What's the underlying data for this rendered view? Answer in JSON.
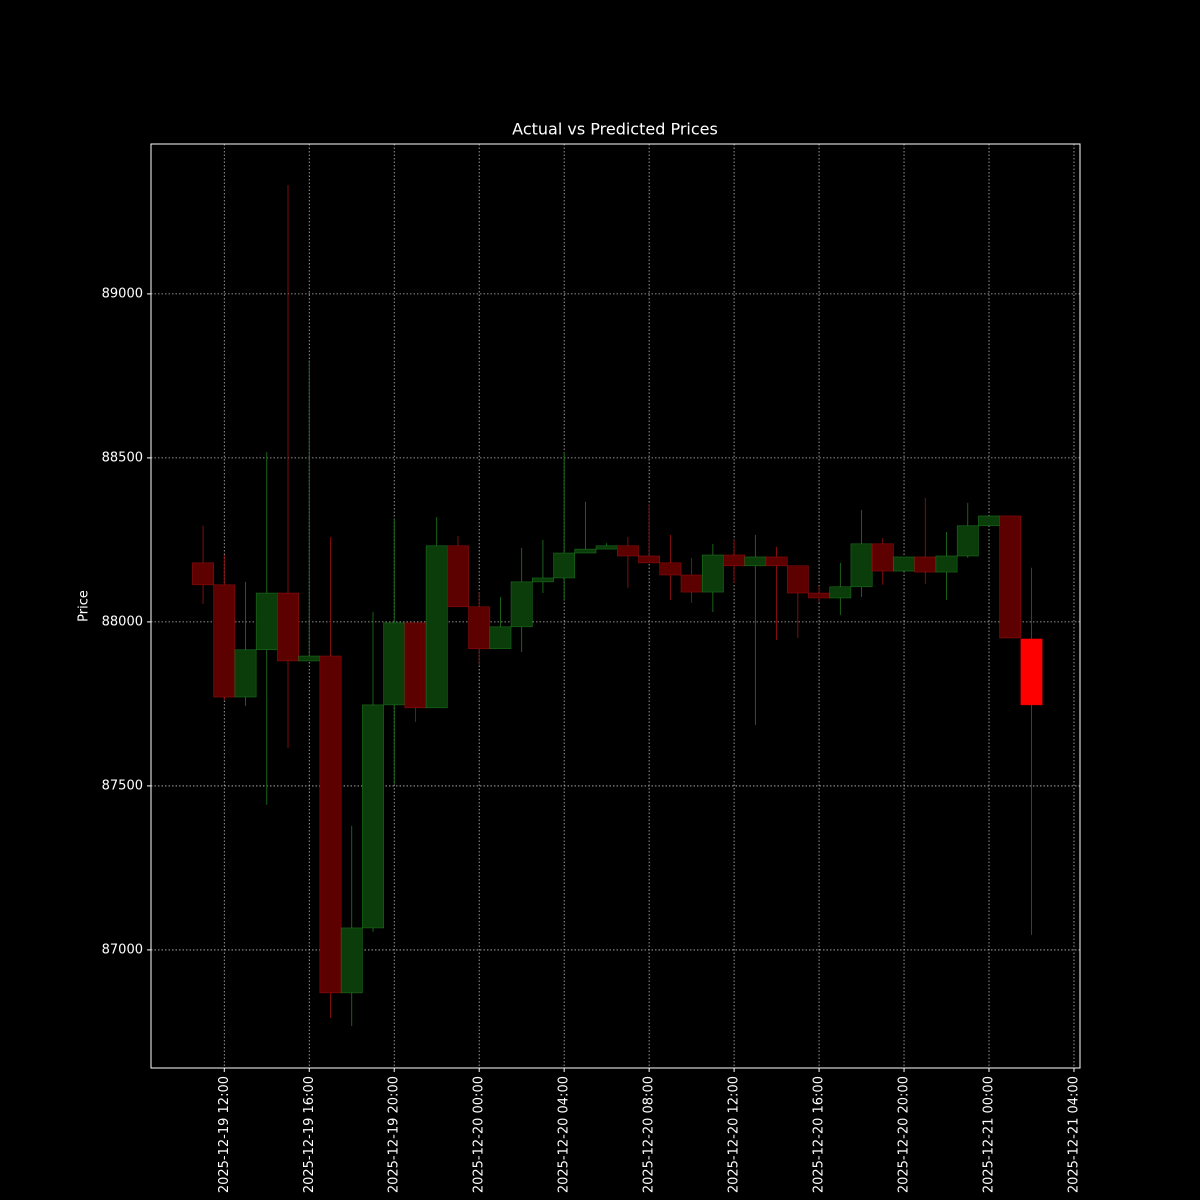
{
  "chart_data": {
    "type": "candlestick",
    "title": "Actual vs Predicted Prices",
    "y_label": "Price",
    "series": [
      {
        "up_color": "#0b3d0b",
        "down_color": "#5c0000",
        "up_edge": "#1f7a1f",
        "down_edge": "#a01010",
        "x": [
          "2025-12-19 11:00",
          "2025-12-19 12:00",
          "2025-12-19 13:00",
          "2025-12-19 14:00",
          "2025-12-19 15:00",
          "2025-12-19 16:00",
          "2025-12-19 17:00",
          "2025-12-19 18:00",
          "2025-12-19 19:00",
          "2025-12-19 20:00",
          "2025-12-19 21:00",
          "2025-12-19 22:00",
          "2025-12-19 23:00",
          "2025-12-20 00:00",
          "2025-12-20 01:00",
          "2025-12-20 02:00",
          "2025-12-20 03:00",
          "2025-12-20 04:00",
          "2025-12-20 05:00",
          "2025-12-20 06:00",
          "2025-12-20 07:00",
          "2025-12-20 08:00",
          "2025-12-20 09:00",
          "2025-12-20 10:00",
          "2025-12-20 11:00",
          "2025-12-20 12:00",
          "2025-12-20 13:00",
          "2025-12-20 14:00",
          "2025-12-20 15:00",
          "2025-12-20 16:00",
          "2025-12-20 17:00",
          "2025-12-20 18:00",
          "2025-12-20 19:00",
          "2025-12-20 20:00",
          "2025-12-20 21:00",
          "2025-12-20 22:00",
          "2025-12-20 23:00",
          "2025-12-21 00:00",
          "2025-12-21 01:00"
        ],
        "open": [
          88180,
          88113,
          87771,
          87915,
          88088,
          87881,
          87896,
          86869,
          87067,
          87747,
          87997,
          87738,
          88232,
          88046,
          87918,
          87985,
          88122,
          88134,
          88210,
          88222,
          88232,
          88201,
          88180,
          88143,
          88091,
          88204,
          88171,
          88198,
          88171,
          88088,
          88073,
          88107,
          88238,
          88155,
          88198,
          88152,
          88201,
          88293,
          88323
        ],
        "high": [
          88293,
          88204,
          88122,
          88518,
          89332,
          88799,
          88259,
          87378,
          88030,
          88314,
          87997,
          88320,
          88262,
          88091,
          88076,
          88226,
          88250,
          88518,
          88366,
          88240,
          88259,
          88357,
          88265,
          88195,
          88238,
          88250,
          88265,
          88229,
          88171,
          88110,
          88180,
          88341,
          88256,
          88198,
          88378,
          88274,
          88363,
          88323,
          88323
        ],
        "low": [
          88055,
          87762,
          87744,
          87442,
          87616,
          87881,
          86793,
          86768,
          87055,
          87506,
          87695,
          87738,
          88046,
          87869,
          87918,
          87908,
          88088,
          88067,
          88210,
          88222,
          88104,
          88180,
          88067,
          88058,
          88030,
          88119,
          87686,
          87945,
          87951,
          88060,
          88021,
          88076,
          88113,
          88155,
          88116,
          88067,
          88195,
          88293,
          87951
        ],
        "close": [
          88113,
          87771,
          87915,
          88088,
          87881,
          87896,
          86869,
          87067,
          87747,
          87997,
          87738,
          88232,
          88046,
          87918,
          87985,
          88122,
          88134,
          88210,
          88222,
          88232,
          88201,
          88180,
          88143,
          88091,
          88204,
          88171,
          88198,
          88171,
          88088,
          88073,
          88107,
          88238,
          88155,
          88198,
          88152,
          88201,
          88293,
          88323,
          87951
        ]
      },
      {
        "up_color": "#00ff00",
        "down_color": "#ff0000",
        "up_edge": "#00ff00",
        "down_edge": "#ff0000",
        "x": [
          "2025-12-21 02:00"
        ],
        "open": [
          87948
        ],
        "high": [
          88165
        ],
        "low": [
          87046
        ],
        "close": [
          87747
        ]
      }
    ],
    "xlim": [
      "2025-12-19 08:33",
      "2025-12-21 04:17"
    ],
    "xticks": [
      "2025-12-19 12:00",
      "2025-12-19 16:00",
      "2025-12-19 20:00",
      "2025-12-20 00:00",
      "2025-12-20 04:00",
      "2025-12-20 08:00",
      "2025-12-20 12:00",
      "2025-12-20 16:00",
      "2025-12-20 20:00",
      "2025-12-21 00:00",
      "2025-12-21 04:00"
    ],
    "ylim": [
      86640,
      89457
    ],
    "yticks": [
      87000,
      87500,
      88000,
      88500,
      89000
    ],
    "grid": true
  }
}
